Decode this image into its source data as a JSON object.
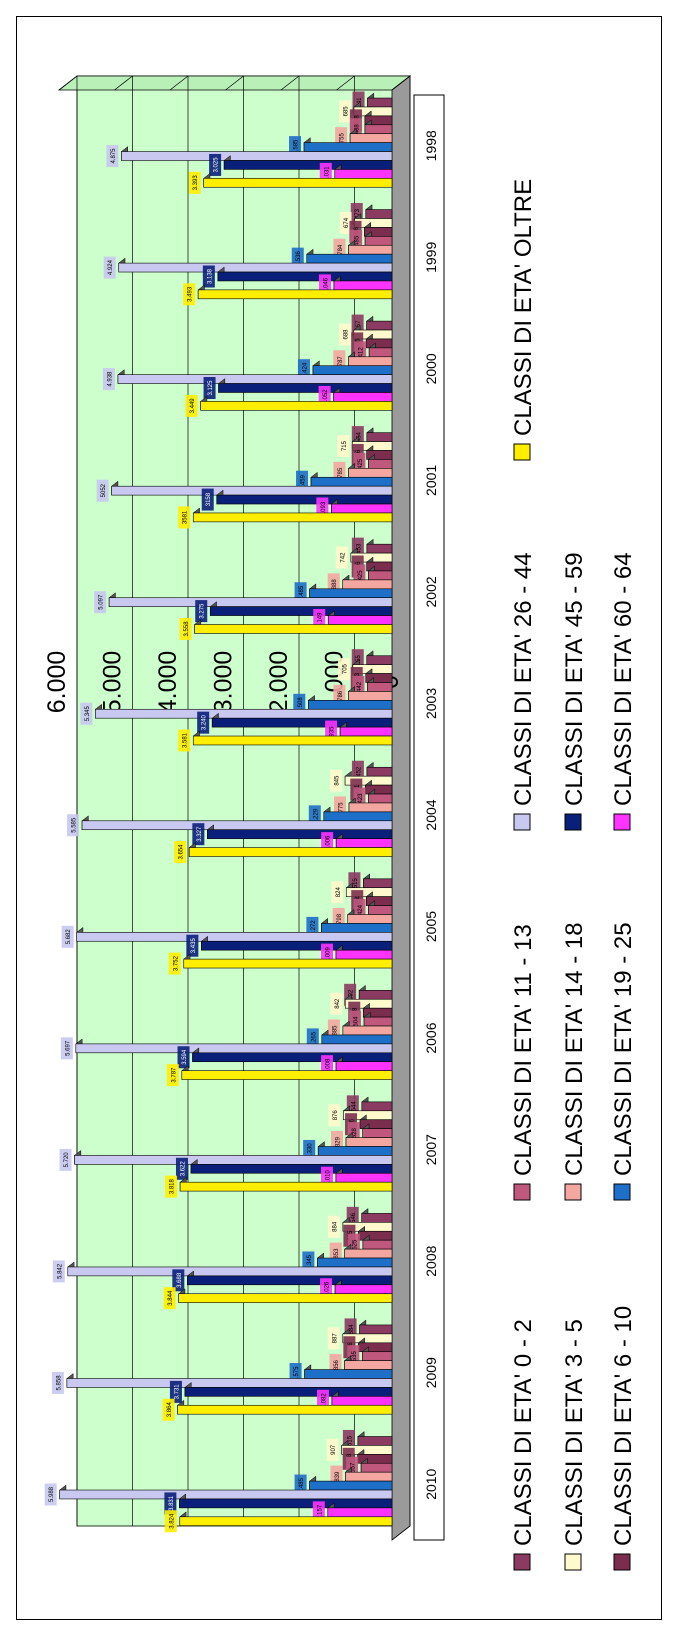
{
  "chart_data": {
    "type": "bar",
    "title": "",
    "xlabel": "",
    "ylabel": "",
    "ylim": [
      0,
      6000
    ],
    "grid": true,
    "legend_position": "right",
    "y_ticks": [
      "0",
      "1.000",
      "2.000",
      "3.000",
      "4.000",
      "5.000",
      "6.000"
    ],
    "categories": [
      "1998",
      "1999",
      "2000",
      "2001",
      "2002",
      "2003",
      "2004",
      "2005",
      "2006",
      "2007",
      "2008",
      "2009",
      "2010"
    ],
    "series": [
      {
        "name": "CLASSI DI ETA' 0 - 2",
        "color": "#8b3a62",
        "values": [
          441,
          473,
          457,
          454,
          453,
          455,
          452,
          515,
          592,
          544,
          546,
          584,
          615
        ],
        "labels": [
          "441",
          "473",
          "457",
          "454",
          "453",
          "455",
          "452",
          "515",
          "592",
          "544",
          "546",
          "584",
          "615"
        ]
      },
      {
        "name": "CLASSI DI ETA' 3 - 5",
        "color": "#fffacd",
        "values": [
          685,
          674,
          688,
          715,
          742,
          705,
          845,
          824,
          842,
          876,
          884,
          887,
          907
        ],
        "labels": [
          "685",
          "674",
          "688",
          "715",
          "742",
          "705",
          "845",
          "824",
          "842",
          "876",
          "884",
          "887",
          "907"
        ]
      },
      {
        "name": "CLASSI DI ETA' 6 - 10",
        "color": "#7b2d4e",
        "values": [
          488,
          496,
          465,
          456,
          456,
          473,
          481,
          464,
          518,
          576,
          605,
          606,
          618
        ],
        "labels": [
          "488",
          "496",
          "465",
          "456",
          "456",
          "473",
          "481",
          "464",
          "518",
          "576",
          "605",
          "606",
          "618"
        ]
      },
      {
        "name": "CLASSI DI ETA' 11 - 13",
        "color": "#c0587e",
        "values": [
          488,
          485,
          412,
          425,
          425,
          442,
          423,
          424,
          504,
          528,
          525,
          535,
          557
        ],
        "labels": [
          "488",
          "485",
          "412",
          "425",
          "425",
          "442",
          "423",
          "424",
          "504",
          "528",
          "525",
          "535",
          "557"
        ]
      },
      {
        "name": "CLASSI DI ETA' 14 - 18",
        "color": "#f4a6a0",
        "values": [
          755,
          784,
          787,
          785,
          888,
          786,
          775,
          798,
          885,
          829,
          853,
          856,
          839
        ],
        "labels": [
          "755",
          "784",
          "787",
          "785",
          "888",
          "786",
          "775",
          "798",
          "885",
          "829",
          "853",
          "856",
          "839"
        ]
      },
      {
        "name": "CLASSI DI ETA' 19 - 25",
        "color": "#1e6fc8",
        "values": [
          1585,
          1536,
          1424,
          1459,
          1485,
          1508,
          1229,
          1272,
          1265,
          1330,
          1345,
          1575,
          1485
        ],
        "labels": [
          "1.585",
          "1.536",
          "1.424",
          "1459",
          "1.485",
          "1.508",
          "1.229",
          "1.272",
          "1.265",
          "1.330",
          "1.345",
          "1.575",
          "1.485"
        ]
      },
      {
        "name": "CLASSI DI ETA' 26 - 44",
        "color": "#c8c8f0",
        "values": [
          4875,
          4924,
          4938,
          5052,
          5097,
          5345,
          5585,
          5682,
          5697,
          5720,
          5842,
          5858,
          5988
        ],
        "labels": [
          "4.875",
          "4.924",
          "4.938",
          "5052",
          "5.097",
          "5.345",
          "5.585",
          "5.682",
          "5.697",
          "5.720",
          "5.842",
          "5.858",
          "5.988"
        ]
      },
      {
        "name": "CLASSI DI ETA' 45 - 59",
        "color": "#0a1f7a",
        "values": [
          3025,
          3138,
          3125,
          3158,
          3275,
          3240,
          3327,
          3435,
          3594,
          3622,
          3688,
          3731,
          3831
        ],
        "labels": [
          "3.025",
          "3.138",
          "3.125",
          "3158",
          "3.275",
          "3.240",
          "3.327",
          "3.435",
          "3.594",
          "3.622",
          "3.688",
          "3.731",
          "3.831"
        ]
      },
      {
        "name": "CLASSI DI ETA' 60 - 64",
        "color": "#ff33ff",
        "values": [
          1031,
          1046,
          1052,
          1093,
          1149,
          935,
          1006,
          1009,
          1008,
          1010,
          1026,
          1082,
          1157
        ],
        "labels": [
          "1.031",
          "1.046",
          "1.052",
          "1093",
          "1.149",
          "935",
          "1.006",
          "1.009",
          "1.008",
          "1.010",
          "1.026",
          "1.082",
          "1.157"
        ]
      },
      {
        "name": "CLASSI DI ETA' OLTRE",
        "color": "#ffee00",
        "values": [
          3393,
          3493,
          3449,
          3581,
          3558,
          3581,
          3654,
          3752,
          3787,
          3818,
          3844,
          3864,
          3824
        ],
        "labels": [
          "3.393",
          "3.493",
          "3.449",
          "3581",
          "3.558",
          "3.581",
          "3.654",
          "3.752",
          "3.787",
          "3.818",
          "3.844",
          "3.864",
          "3.824"
        ]
      }
    ]
  }
}
